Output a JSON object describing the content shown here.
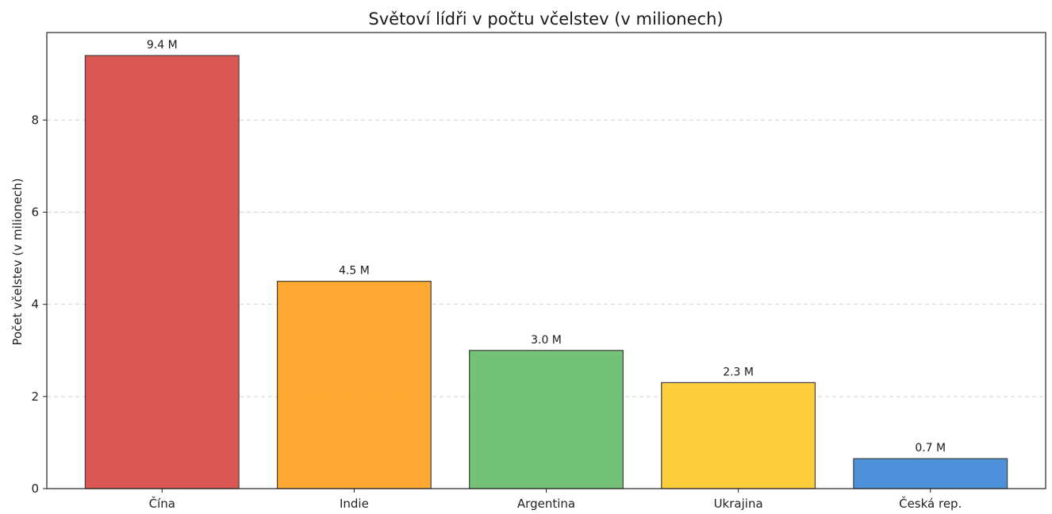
{
  "chart_data": {
    "type": "bar",
    "title": "Světoví lídři v počtu včelstev (v milionech)",
    "xlabel": "",
    "ylabel": "Počet včelstev (v milionech)",
    "categories": [
      "Čína",
      "Indie",
      "Argentina",
      "Ukrajina",
      "Česká rep."
    ],
    "values": [
      9.4,
      4.5,
      3.0,
      2.3,
      0.65
    ],
    "data_labels": [
      "9.4 M",
      "4.5 M",
      "3.0 M",
      "2.3 M",
      "0.7 M"
    ],
    "colors": [
      "#d64541",
      "#ffa01c",
      "#66bb6a",
      "#ffc928",
      "#3a86d8"
    ],
    "ylim": [
      0,
      9.9
    ],
    "yticks": [
      0,
      2,
      4,
      6,
      8
    ],
    "grid": true,
    "legend": "none"
  }
}
